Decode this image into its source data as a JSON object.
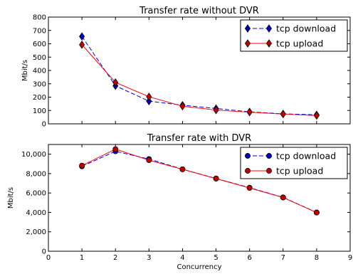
{
  "chart_data": [
    {
      "type": "line",
      "title": "Transfer rate without DVR",
      "xlabel": "",
      "ylabel": "Mbit/s",
      "xlim": [
        0,
        9
      ],
      "ylim": [
        0,
        800
      ],
      "x_ticks": [],
      "y_ticks": [
        0,
        100,
        200,
        300,
        400,
        500,
        600,
        700,
        800
      ],
      "y_tick_labels": [
        "0",
        "100",
        "200",
        "300",
        "400",
        "500",
        "600",
        "700",
        "800"
      ],
      "legend_position": "upper-right",
      "marker": "diamond",
      "x": [
        1,
        2,
        3,
        4,
        5,
        6,
        7,
        8
      ],
      "series": [
        {
          "name": "tcp download",
          "color": "#0000ff",
          "line_style": "dashed",
          "marker_face": "#0000bf",
          "values": [
            655,
            285,
            170,
            140,
            115,
            90,
            75,
            68
          ]
        },
        {
          "name": "tcp upload",
          "color": "#ff0000",
          "line_style": "solid",
          "marker_face": "#bf0000",
          "values": [
            593,
            310,
            203,
            132,
            103,
            87,
            73,
            62
          ]
        }
      ]
    },
    {
      "type": "line",
      "title": "Transfer rate with DVR",
      "xlabel": "Concurrency",
      "ylabel": "Mbit/s",
      "xlim": [
        0,
        9
      ],
      "ylim": [
        0,
        11000
      ],
      "x_ticks": [
        0,
        1,
        2,
        3,
        4,
        5,
        6,
        7,
        8,
        9
      ],
      "x_tick_labels": [
        "0",
        "1",
        "2",
        "3",
        "4",
        "5",
        "6",
        "7",
        "8",
        "9"
      ],
      "y_ticks": [
        0,
        2000,
        4000,
        6000,
        8000,
        10000
      ],
      "y_tick_labels": [
        "0",
        "2,000",
        "4,000",
        "6,000",
        "8,000",
        "10,000"
      ],
      "legend_position": "upper-right",
      "marker": "circle",
      "x": [
        1,
        2,
        3,
        4,
        5,
        6,
        7,
        8
      ],
      "series": [
        {
          "name": "tcp download",
          "color": "#0000ff",
          "line_style": "dashed",
          "marker_face": "#0000bf",
          "values": [
            8750,
            10300,
            9500,
            8450,
            7500,
            6550,
            5550,
            4000
          ]
        },
        {
          "name": "tcp upload",
          "color": "#ff0000",
          "line_style": "solid",
          "marker_face": "#bf0000",
          "values": [
            8820,
            10520,
            9380,
            8440,
            7480,
            6520,
            5530,
            3980
          ]
        }
      ]
    }
  ]
}
